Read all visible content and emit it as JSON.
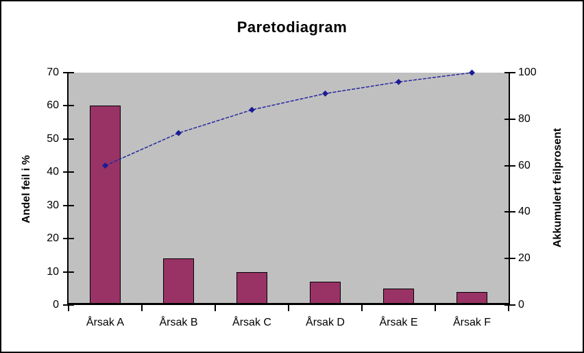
{
  "chart_data": {
    "type": "pareto (bar + line)",
    "title": "Paretodiagram",
    "categories": [
      "Årsak A",
      "Årsak B",
      "Årsak C",
      "Årsak D",
      "Årsak E",
      "Årsak F"
    ],
    "series": [
      {
        "type": "bar",
        "axis": "left",
        "values": [
          60,
          14,
          10,
          7,
          5,
          4
        ],
        "color": "#993366",
        "border_color": "#000000"
      },
      {
        "type": "line",
        "axis": "right",
        "values": [
          60,
          74,
          84,
          91,
          96,
          100
        ],
        "color": "#2424a0",
        "marker": "diamond",
        "marker_color": "#1c1c96",
        "dashed": true
      }
    ],
    "left_axis": {
      "label": "Andel feil i %",
      "min": 0,
      "max": 70,
      "step": 10,
      "tick_labels": [
        "0",
        "10",
        "20",
        "30",
        "40",
        "50",
        "60",
        "70"
      ]
    },
    "right_axis": {
      "label": "Akkumulert feilprosent",
      "min": 0,
      "max": 100,
      "step": 20,
      "tick_labels": [
        "0",
        "20",
        "40",
        "60",
        "80",
        "100"
      ]
    },
    "plot_background": "#c0c0c0",
    "chart_background": "#ffffff",
    "frame_border_color": "#000000",
    "axis_color": "#000000",
    "gridlines": false,
    "legend": null
  }
}
